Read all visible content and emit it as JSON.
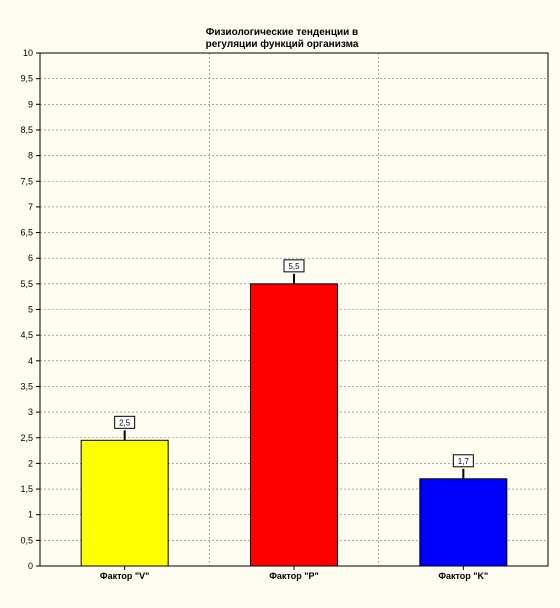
{
  "chart_data": {
    "type": "bar",
    "title_lines": [
      "Физиологические тенденции в",
      "регуляции функций организма"
    ],
    "categories": [
      "Фактор \"V\"",
      "Фактор \"P\"",
      "Фактор \"K\""
    ],
    "values": [
      2.45,
      5.5,
      1.7
    ],
    "value_labels": [
      "2,5",
      "5,5",
      "1,7"
    ],
    "colors": [
      "#ffff00",
      "#ff0000",
      "#0000ff"
    ],
    "ylim": [
      0,
      10
    ],
    "yticks": [
      "0",
      "0,5",
      "1",
      "1,5",
      "2",
      "2,5",
      "3",
      "3,5",
      "4",
      "4,5",
      "5",
      "5,5",
      "6",
      "6,5",
      "7",
      "7,5",
      "8",
      "8,5",
      "9",
      "9,5",
      "10"
    ],
    "grid": true,
    "legend": "none"
  }
}
